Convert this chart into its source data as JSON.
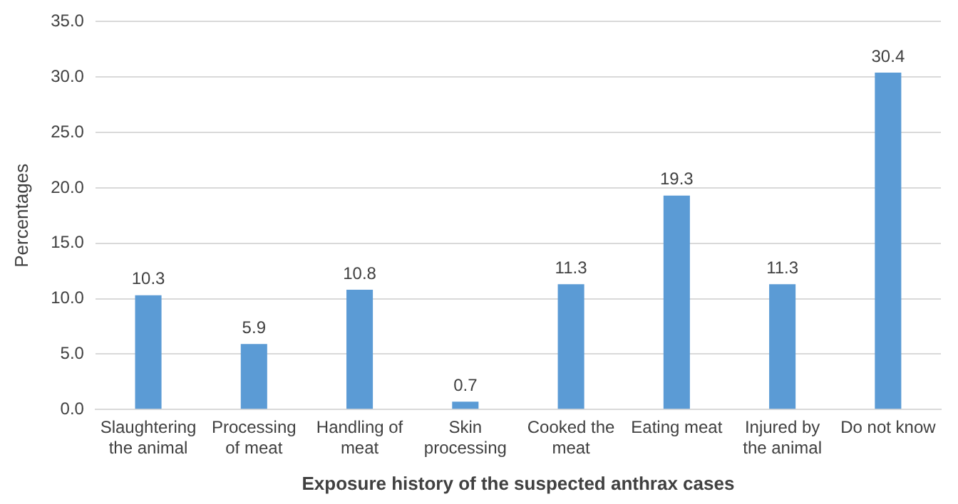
{
  "chart_data": {
    "type": "bar",
    "xlabel": "Exposure history of the suspected anthrax cases",
    "ylabel": "Percentages",
    "categories": [
      "Slaughtering the animal",
      "Processing of meat",
      "Handling of meat",
      "Skin processing",
      "Cooked the meat",
      "Eating meat",
      "Injured by the animal",
      "Do not know"
    ],
    "values": [
      10.3,
      5.9,
      10.8,
      0.7,
      11.3,
      19.3,
      11.3,
      30.4
    ],
    "color": "#5b9bd5",
    "ylim": [
      0,
      35
    ],
    "yticks": [
      {
        "value": 0,
        "label": "0.0"
      },
      {
        "value": 5,
        "label": "5.0"
      },
      {
        "value": 10,
        "label": "10.0"
      },
      {
        "value": 15,
        "label": "15.0"
      },
      {
        "value": 20,
        "label": "20.0"
      },
      {
        "value": 25,
        "label": "25.0"
      },
      {
        "value": 30,
        "label": "30.0"
      },
      {
        "value": 35,
        "label": "35.0"
      }
    ],
    "grid": "y",
    "data_labels": true
  }
}
